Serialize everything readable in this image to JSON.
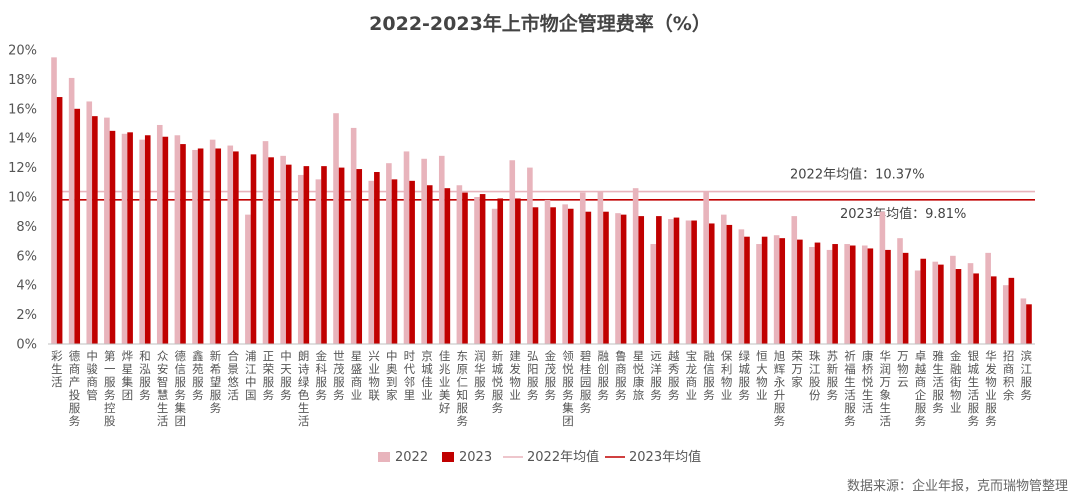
{
  "chart_data": {
    "type": "bar",
    "title": "2022-2023年上市物企管理费率（%）",
    "xlabel": "",
    "ylabel": "",
    "ylim": [
      0,
      20
    ],
    "yticks": [
      "0%",
      "2%",
      "4%",
      "6%",
      "8%",
      "10%",
      "12%",
      "14%",
      "16%",
      "18%",
      "20%"
    ],
    "categories": [
      "彩生活",
      "德商产投服务",
      "中骏商管",
      "第一服务控股",
      "烨星集团",
      "和泓服务",
      "众安智慧生活",
      "德信服务集团",
      "鑫苑服务",
      "新希望服务",
      "合景悠活",
      "浦江中国",
      "正荣服务",
      "中天服务",
      "朗诗绿色生活",
      "金科服务",
      "世茂服务",
      "星盛商业",
      "兴业物联",
      "中奥到家",
      "时代邻里",
      "京城佳业",
      "佳兆业美好",
      "东原仁知服务",
      "润华服务",
      "新城悦服务",
      "建发物业",
      "弘阳服务",
      "金茂服务",
      "领悦服务集团",
      "碧桂园服务",
      "融创服务",
      "鲁商服务",
      "星悦康旅",
      "远洋服务",
      "越秀服务",
      "宝龙商业",
      "融信服务",
      "保利物业",
      "绿城服务",
      "恒大物业",
      "旭辉永升服务",
      "荣万家",
      "珠江股份",
      "苏新服务",
      "祈福生活服务",
      "康桥悦生活",
      "华润万象生活",
      "万物云",
      "卓越商企服务",
      "雅生活服务",
      "金融街物业",
      "银城生活服务",
      "华发物业服务",
      "招商积余",
      "滨江服务"
    ],
    "series": [
      {
        "name": "2022",
        "color": "#E8B4BC",
        "values": [
          19.5,
          18.1,
          16.5,
          15.4,
          14.3,
          13.9,
          14.9,
          14.2,
          13.2,
          13.9,
          13.5,
          8.8,
          13.8,
          12.8,
          11.5,
          11.2,
          15.7,
          14.7,
          11.1,
          12.3,
          13.1,
          12.6,
          12.8,
          10.8,
          10.0,
          9.2,
          12.5,
          12.0,
          9.8,
          9.5,
          10.3,
          10.4,
          8.9,
          10.6,
          6.8,
          8.5,
          8.4,
          10.4,
          8.8,
          7.8,
          6.8,
          7.4,
          8.7,
          6.6,
          6.4,
          6.8,
          6.7,
          9.0,
          7.2,
          5.0,
          5.6,
          6.0,
          5.5,
          6.2,
          4.0,
          3.1
        ]
      },
      {
        "name": "2023",
        "color": "#C00000",
        "values": [
          16.8,
          16.0,
          15.5,
          14.5,
          14.4,
          14.2,
          14.1,
          13.6,
          13.3,
          13.3,
          13.1,
          12.9,
          12.7,
          12.2,
          12.1,
          12.1,
          12.0,
          11.9,
          11.7,
          11.2,
          11.1,
          10.8,
          10.6,
          10.3,
          10.2,
          9.9,
          9.9,
          9.3,
          9.3,
          9.2,
          9.0,
          9.0,
          8.8,
          8.7,
          8.7,
          8.6,
          8.4,
          8.2,
          8.1,
          7.3,
          7.3,
          7.2,
          7.1,
          6.9,
          6.8,
          6.7,
          6.5,
          6.4,
          6.2,
          5.8,
          5.4,
          5.1,
          4.8,
          4.6,
          4.5,
          2.7
        ]
      }
    ],
    "reference_lines": [
      {
        "name": "2022年均值",
        "value": 10.37,
        "label": "2022年均值：10.37%",
        "color": "#E8B4BC"
      },
      {
        "name": "2023年均值",
        "value": 9.81,
        "label": "2023年均值：9.81%",
        "color": "#C00000"
      }
    ],
    "legend": {
      "position": "bottom",
      "items": [
        "2022",
        "2023",
        "2022年均值",
        "2023年均值"
      ]
    },
    "grid": false
  },
  "source_note": "数据来源：企业年报，克而瑞物管整理"
}
